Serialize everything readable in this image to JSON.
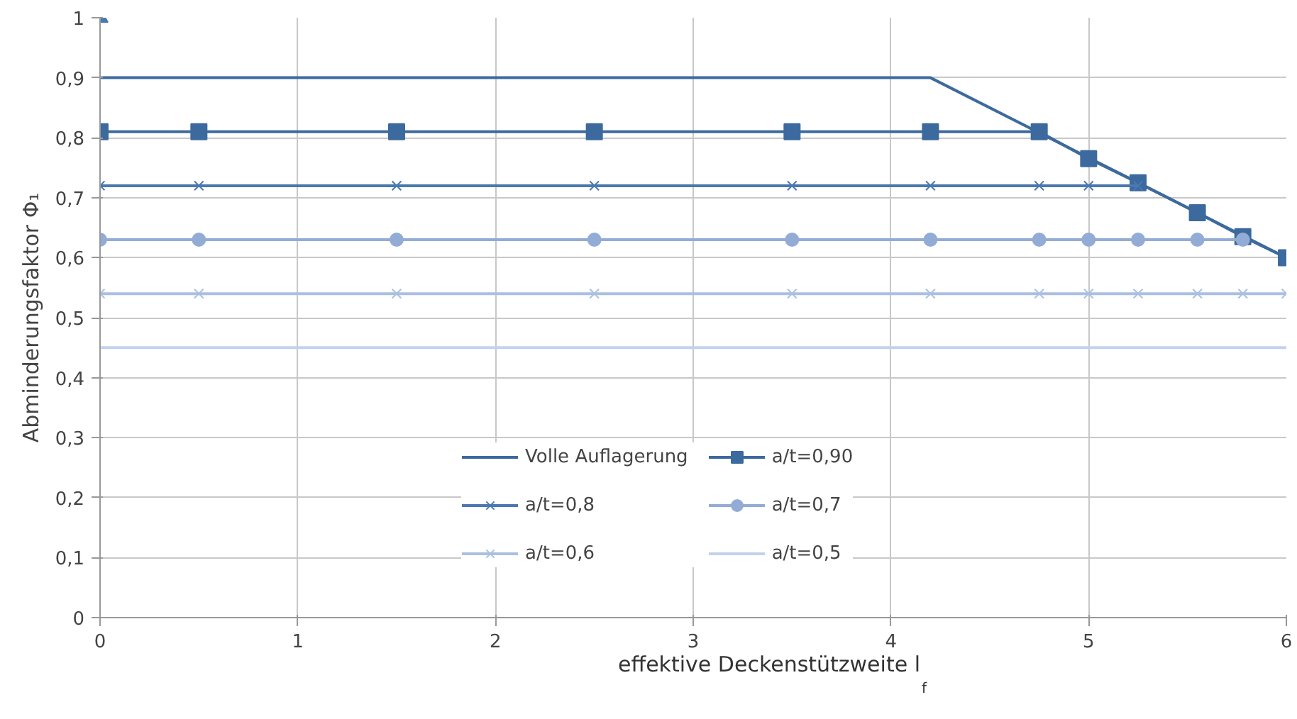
{
  "chart_data": {
    "type": "line",
    "xlabel": "effektive Deckenstützweite l$_{f}$",
    "ylabel": "Abminderungsfaktor Φ₁",
    "xlim": [
      0,
      6
    ],
    "xticks": [
      0,
      1,
      2,
      3,
      4,
      5,
      6
    ],
    "ylim": [
      0,
      1
    ],
    "yticks": [
      0,
      {
        "value": 0.1,
        "label": "0,1"
      },
      {
        "value": 0.2,
        "label": "0,2"
      },
      {
        "value": 0.3,
        "label": "0,3"
      },
      {
        "value": 0.4,
        "label": "0,4"
      },
      {
        "value": 0.5,
        "label": "0,5"
      },
      {
        "value": 0.6,
        "label": "0,6"
      },
      {
        "value": 0.7,
        "label": "0,7"
      },
      {
        "value": 0.8,
        "label": "0,8"
      },
      {
        "value": 0.9,
        "label": "0,9"
      },
      1
    ],
    "grid": true,
    "legend": "bottom",
    "series": [
      {
        "name": "Volle Auflagerung",
        "color": "#3d6a9e",
        "marker": "none",
        "x": [
          0,
          4.2,
          6
        ],
        "values": [
          0.9,
          0.9,
          0.6
        ]
      },
      {
        "name": "a/t=0,90",
        "color": "#3d6a9e",
        "marker": "square",
        "x": [
          0,
          0.5,
          1.5,
          2.5,
          3.5,
          4.2,
          4.75,
          5,
          5.25,
          5.55,
          5.78,
          6
        ],
        "values": [
          0.81,
          0.81,
          0.81,
          0.81,
          0.81,
          0.81,
          0.81,
          0.765,
          0.725,
          0.675,
          0.635,
          0.6
        ]
      },
      {
        "name": "a/t=0,8",
        "color": "#4a78b0",
        "marker": "cross",
        "x": [
          0,
          0.5,
          1.5,
          2.5,
          3.5,
          4.2,
          4.75,
          5,
          5.25
        ],
        "values": [
          0.72,
          0.72,
          0.72,
          0.72,
          0.72,
          0.72,
          0.72,
          0.72,
          0.72
        ]
      },
      {
        "name": "a/t=0,7",
        "color": "#93acd6",
        "marker": "circle",
        "x": [
          0,
          0.5,
          1.5,
          2.5,
          3.5,
          4.2,
          4.75,
          5,
          5.25,
          5.55,
          5.78
        ],
        "values": [
          0.63,
          0.63,
          0.63,
          0.63,
          0.63,
          0.63,
          0.63,
          0.63,
          0.63,
          0.63,
          0.63
        ]
      },
      {
        "name": "a/t=0,6",
        "color": "#aabfe2",
        "marker": "cross",
        "x": [
          0,
          0.5,
          1.5,
          2.5,
          3.5,
          4.2,
          4.75,
          5,
          5.25,
          5.55,
          5.78,
          6
        ],
        "values": [
          0.54,
          0.54,
          0.54,
          0.54,
          0.54,
          0.54,
          0.54,
          0.54,
          0.54,
          0.54,
          0.54,
          0.54
        ]
      },
      {
        "name": "a/t=0,5",
        "color": "#c3d2ec",
        "marker": "none",
        "x": [
          0,
          6
        ],
        "values": [
          0.45,
          0.45
        ]
      },
      {
        "type": "scatter",
        "color": "#4a78b0",
        "marker": "triangle",
        "x": [
          0
        ],
        "values": [
          1
        ]
      }
    ]
  }
}
